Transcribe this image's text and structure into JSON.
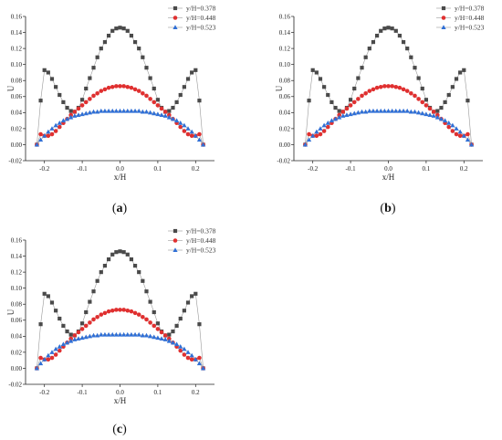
{
  "figure": {
    "panels": [
      {
        "label_open": "(",
        "label_letter": "a",
        "label_close": ")"
      },
      {
        "label_open": "(",
        "label_letter": "b",
        "label_close": ")"
      },
      {
        "label_open": "(",
        "label_letter": "c",
        "label_close": ")"
      }
    ]
  },
  "colors": {
    "series": [
      "#4a4a4a",
      "#e03030",
      "#2f6fd6"
    ],
    "axis": "#222222",
    "line": "#9a9a9a"
  },
  "markers": [
    "square",
    "circle",
    "triangle"
  ],
  "chart_data": [
    {
      "type": "scatter",
      "title": "",
      "xlabel": "x/H",
      "ylabel": "U",
      "xlim": [
        -0.25,
        0.25
      ],
      "ylim": [
        -0.02,
        0.16
      ],
      "xticks": [
        "-0.2",
        "-0.1",
        "0.0",
        "0.1",
        "0.2"
      ],
      "yticks": [
        "-0.02",
        "0.00",
        "0.02",
        "0.04",
        "0.06",
        "0.08",
        "0.10",
        "0.12",
        "0.14",
        "0.16"
      ],
      "legend": "top-right",
      "series_names": [
        "y/H=0.378",
        "y/H=0.448",
        "y/H=0.523"
      ]
    },
    {
      "type": "scatter",
      "title": "",
      "xlabel": "x/H",
      "ylabel": "U",
      "xlim": [
        -0.25,
        0.25
      ],
      "ylim": [
        -0.02,
        0.16
      ],
      "xticks": [
        "-0.2",
        "-0.1",
        "0.0",
        "0.1",
        "0.2"
      ],
      "yticks": [
        "-0.02",
        "0.00",
        "0.02",
        "0.04",
        "0.06",
        "0.08",
        "0.10",
        "0.12",
        "0.14",
        "0.16"
      ],
      "legend": "top-right",
      "series_names": [
        "y/H=0.378",
        "y/H=0.448",
        "y/H=0.523"
      ]
    },
    {
      "type": "scatter",
      "title": "",
      "xlabel": "x/H",
      "ylabel": "U",
      "xlim": [
        -0.25,
        0.25
      ],
      "ylim": [
        -0.02,
        0.16
      ],
      "xticks": [
        "-0.2",
        "-0.1",
        "0.0",
        "0.1",
        "0.2"
      ],
      "yticks": [
        "-0.02",
        "0.00",
        "0.02",
        "0.04",
        "0.06",
        "0.08",
        "0.10",
        "0.12",
        "0.14",
        "0.16"
      ],
      "legend": "top-right",
      "series_names": [
        "y/H=0.378",
        "y/H=0.448",
        "y/H=0.523"
      ]
    }
  ],
  "series_points": {
    "x": [
      -0.22,
      -0.21,
      -0.2,
      -0.19,
      -0.18,
      -0.17,
      -0.16,
      -0.15,
      -0.14,
      -0.13,
      -0.12,
      -0.11,
      -0.1,
      -0.09,
      -0.08,
      -0.07,
      -0.06,
      -0.05,
      -0.04,
      -0.03,
      -0.02,
      -0.01,
      0.0,
      0.01,
      0.02,
      0.03,
      0.04,
      0.05,
      0.06,
      0.07,
      0.08,
      0.09,
      0.1,
      0.11,
      0.12,
      0.13,
      0.14,
      0.15,
      0.16,
      0.17,
      0.18,
      0.19,
      0.2,
      0.21,
      0.22
    ],
    "y_0378": [
      0.0,
      0.055,
      0.093,
      0.09,
      0.082,
      0.072,
      0.062,
      0.053,
      0.046,
      0.042,
      0.041,
      0.046,
      0.056,
      0.07,
      0.083,
      0.096,
      0.109,
      0.12,
      0.128,
      0.136,
      0.142,
      0.145,
      0.146,
      0.145,
      0.142,
      0.136,
      0.128,
      0.12,
      0.109,
      0.096,
      0.083,
      0.07,
      0.056,
      0.046,
      0.041,
      0.042,
      0.046,
      0.053,
      0.062,
      0.072,
      0.082,
      0.09,
      0.093,
      0.055,
      0.0
    ],
    "y_0448": [
      0.0,
      0.013,
      0.011,
      0.011,
      0.013,
      0.017,
      0.022,
      0.027,
      0.032,
      0.037,
      0.041,
      0.045,
      0.049,
      0.053,
      0.057,
      0.061,
      0.064,
      0.067,
      0.069,
      0.071,
      0.072,
      0.073,
      0.073,
      0.073,
      0.072,
      0.071,
      0.069,
      0.067,
      0.064,
      0.061,
      0.057,
      0.053,
      0.049,
      0.045,
      0.041,
      0.037,
      0.032,
      0.027,
      0.022,
      0.017,
      0.013,
      0.011,
      0.011,
      0.013,
      0.0
    ],
    "y_0523": [
      0.0,
      0.006,
      0.011,
      0.016,
      0.02,
      0.024,
      0.027,
      0.03,
      0.032,
      0.034,
      0.036,
      0.037,
      0.038,
      0.039,
      0.04,
      0.041,
      0.041,
      0.042,
      0.042,
      0.042,
      0.042,
      0.042,
      0.042,
      0.042,
      0.042,
      0.042,
      0.042,
      0.042,
      0.041,
      0.041,
      0.04,
      0.039,
      0.038,
      0.037,
      0.036,
      0.034,
      0.032,
      0.03,
      0.027,
      0.024,
      0.02,
      0.016,
      0.011,
      0.006,
      0.0
    ]
  }
}
